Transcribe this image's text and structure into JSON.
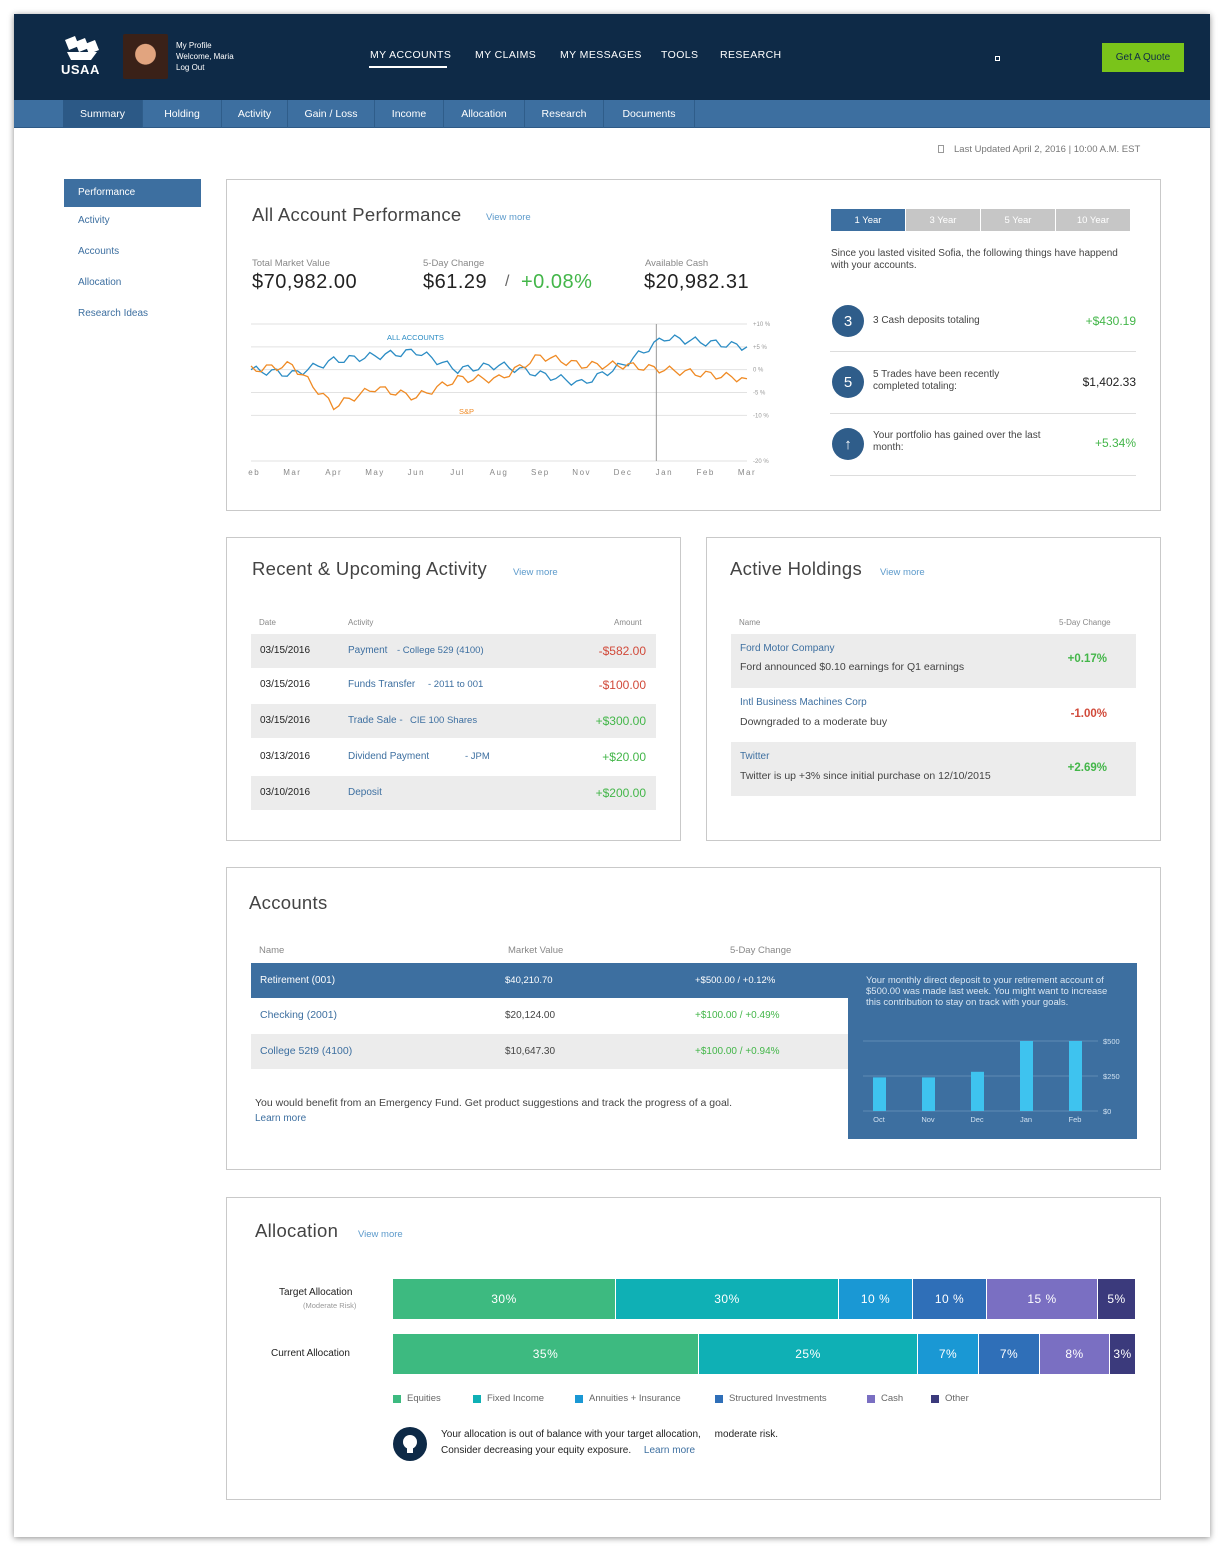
{
  "header": {
    "logo_text": "USAA",
    "profile_lines": [
      "My Profile",
      "Welcome, Maria",
      "Log Out"
    ],
    "nav": [
      "MY ACCOUNTS",
      "MY CLAIMS",
      "MY MESSAGES",
      "TOOLS",
      "RESEARCH"
    ],
    "quote_button": "Get A Quote"
  },
  "subnav": [
    "Summary",
    "Holding",
    "Activity",
    "Gain / Loss",
    "Income",
    "Allocation",
    "Research",
    "Documents"
  ],
  "last_updated": "Last Updated April 2, 2016 | 10:00 A.M. EST",
  "left_menu": [
    "Performance",
    "Activity",
    "Accounts",
    "Allocation",
    "Research Ideas"
  ],
  "performance": {
    "title": "All Account Performance",
    "view_more": "View more",
    "total_market_value_label": "Total Market Value",
    "total_market_value": "$70,982.00",
    "five_day_change_label": "5-Day Change",
    "five_day_change": "$61.29",
    "slash": "/",
    "five_day_change_pct": "+0.08%",
    "available_cash_label": "Available Cash",
    "available_cash": "$20,982.31",
    "year_buttons": [
      "1 Year",
      "3 Year",
      "5 Year",
      "10 Year"
    ],
    "since_text": "Since you lasted visited Sofia, the following things have happend with your accounts.",
    "events": [
      {
        "badge": "3",
        "text": "3 Cash deposits totaling",
        "amount": "+$430.19"
      },
      {
        "badge": "5",
        "text": "5 Trades have been recently completed totaling:",
        "amount": "$1,402.33"
      },
      {
        "badge": "↑",
        "text": "Your portfolio has gained over the last month:",
        "amount": "+5.34%"
      }
    ]
  },
  "chart_data": {
    "type": "line",
    "x": [
      "Feb",
      "Mar",
      "Apr",
      "May",
      "Jun",
      "Jul",
      "Aug",
      "Sep",
      "Nov",
      "Dec",
      "Jan",
      "Feb",
      "Mar"
    ],
    "y_ticks": [
      "+10 %",
      "+5 %",
      "0 %",
      "-5 %",
      "-10 %",
      "-20 %"
    ],
    "ylim": [
      -20,
      10
    ],
    "series": [
      {
        "name": "ALL ACCOUNTS",
        "color": "#2b8cc4",
        "values": [
          0,
          -1,
          2,
          3,
          4,
          0,
          1,
          -1,
          -3,
          1,
          7,
          6,
          5
        ]
      },
      {
        "name": "S&P",
        "color": "#ef8a24",
        "values": [
          0,
          1,
          -8,
          -4,
          -6,
          -2,
          -2,
          3,
          1,
          1,
          0,
          -1,
          -2
        ]
      }
    ]
  },
  "activity": {
    "title": "Recent & Upcoming Activity",
    "view_more": "View more",
    "headers": {
      "date": "Date",
      "activity": "Activity",
      "amount": "Amount"
    },
    "rows": [
      {
        "date": "03/15/2016",
        "activity": "Payment",
        "detail": "- College 529 (4100)",
        "amount": "-$582.00"
      },
      {
        "date": "03/15/2016",
        "activity": "Funds Transfer",
        "detail": "- 2011 to 001",
        "amount": "-$100.00"
      },
      {
        "date": "03/15/2016",
        "activity": "Trade Sale -",
        "detail": "CIE 100 Shares",
        "amount": "+$300.00"
      },
      {
        "date": "03/13/2016",
        "activity": "Dividend Payment",
        "detail": "- JPM",
        "amount": "+$20.00"
      },
      {
        "date": "03/10/2016",
        "activity": "Deposit",
        "detail": "",
        "amount": "+$200.00"
      }
    ]
  },
  "holdings": {
    "title": "Active Holdings",
    "view_more": "View more",
    "headers": {
      "name": "Name",
      "change": "5-Day Change"
    },
    "rows": [
      {
        "name": "Ford Motor Company",
        "note": "Ford announced $0.10 earnings for Q1 earnings",
        "change": "+0.17%"
      },
      {
        "name": "Intl Business Machines Corp",
        "note": "Downgraded to a moderate buy",
        "change": "-1.00%"
      },
      {
        "name": "Twitter",
        "note": "Twitter is up +3% since initial purchase on 12/10/2015",
        "change": "+2.69%"
      }
    ]
  },
  "accounts": {
    "title": "Accounts",
    "headers": {
      "name": "Name",
      "value": "Market Value",
      "change": "5-Day Change"
    },
    "rows": [
      {
        "name": "Retirement (001)",
        "value": "$40,210.70",
        "change": "+$500.00 / +0.12%"
      },
      {
        "name": "Checking (2001)",
        "value": "$20,124.00",
        "change": "+$100.00 / +0.49%"
      },
      {
        "name": "College 52t9 (4100)",
        "value": "$10,647.30",
        "change": "+$100.00 / +0.94%"
      }
    ],
    "tip": "You would benefit from an Emergency Fund. Get product suggestions and track the progress of a goal.",
    "learn_more": "Learn more",
    "callout": "Your monthly direct deposit to your retirement account of $500.00 was made last week. You might want to increase this contribution to stay on track with your goals."
  },
  "deposit_chart": {
    "type": "bar",
    "categories": [
      "Oct",
      "Nov",
      "Dec",
      "Jan",
      "Feb"
    ],
    "values": [
      240,
      240,
      280,
      500,
      500
    ],
    "y_ticks": [
      "$500",
      "$250",
      "$0"
    ],
    "ylim": [
      0,
      500
    ]
  },
  "allocation": {
    "title": "Allocation",
    "view_more": "View more",
    "target_label": "Target Allocation",
    "target_sub": "(Moderate Risk)",
    "current_label": "Current Allocation",
    "target": [
      {
        "label": "30%",
        "value": 30
      },
      {
        "label": "30%",
        "value": 30
      },
      {
        "label": "10 %",
        "value": 10
      },
      {
        "label": "10 %",
        "value": 10
      },
      {
        "label": "15 %",
        "value": 15
      },
      {
        "label": "5%",
        "value": 5
      }
    ],
    "current": [
      {
        "label": "35%",
        "value": 35
      },
      {
        "label": "25%",
        "value": 25
      },
      {
        "label": "7%",
        "value": 7
      },
      {
        "label": "7%",
        "value": 7
      },
      {
        "label": "8%",
        "value": 8
      },
      {
        "label": "3%",
        "value": 3
      }
    ],
    "legend": [
      "Equities",
      "Fixed Income",
      "Annuities + Insurance",
      "Structured Investments",
      "Cash",
      "Other"
    ],
    "colors": [
      "#3dba80",
      "#0fb0b5",
      "#1a98d4",
      "#2f6fb8",
      "#7a6fc2",
      "#3b3a7c"
    ],
    "advice_line1": "Your allocation is out of balance with your target allocation,     moderate risk.",
    "advice_line2": "Consider decreasing your equity exposure.",
    "learn_more": "Learn more"
  }
}
